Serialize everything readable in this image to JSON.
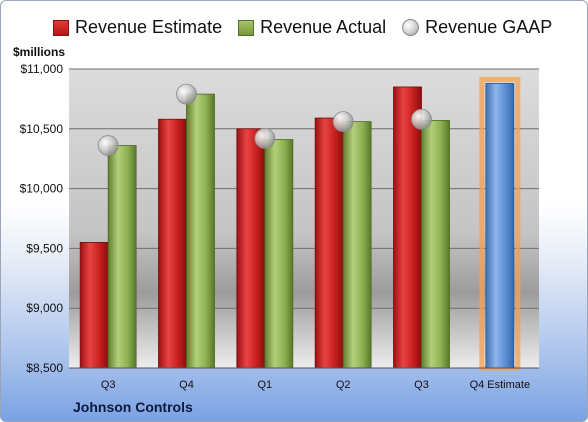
{
  "chart_data": {
    "type": "bar",
    "title": "",
    "ylabel": "$millions",
    "caption": "Johnson Controls",
    "categories": [
      "Q3",
      "Q4",
      "Q1",
      "Q2",
      "Q3",
      "Q4 Estimate"
    ],
    "ylim": [
      8500,
      11000
    ],
    "yticks": [
      8500,
      9000,
      9500,
      10000,
      10500,
      11000
    ],
    "ytick_labels": [
      "$8,500",
      "$9,000",
      "$9,500",
      "$10,000",
      "$10,500",
      "$11,000"
    ],
    "grid": true,
    "legend_position": "top",
    "series": [
      {
        "name": "Revenue Estimate",
        "kind": "bar",
        "color": "#c81e1e",
        "values": [
          9550,
          10580,
          10500,
          10590,
          10850,
          null
        ]
      },
      {
        "name": "Revenue Actual",
        "kind": "bar",
        "color": "#8db052",
        "values": [
          10360,
          10790,
          10410,
          10560,
          10570,
          null
        ]
      },
      {
        "name": "Revenue GAAP",
        "kind": "marker",
        "color": "#bfbfbf",
        "values": [
          10360,
          10790,
          10420,
          10560,
          10580,
          null
        ]
      }
    ],
    "estimate_bar": {
      "category": "Q4 Estimate",
      "value": 10880,
      "color": "#5b8fd6",
      "highlight_color": "#f5a04a"
    }
  }
}
